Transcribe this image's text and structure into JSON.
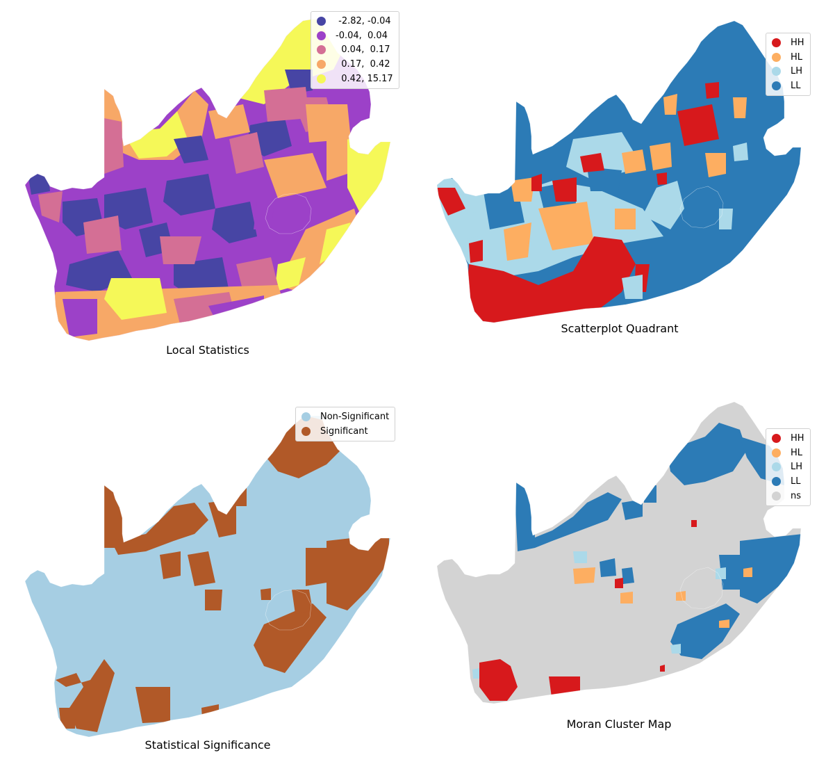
{
  "panels": [
    {
      "id": "local-statistics",
      "title": "Local Statistics",
      "legend": [
        {
          "label": " -2.82, -0.04",
          "color": "#4745a4"
        },
        {
          "label": "-0.04,  0.04",
          "color": "#9c41c8"
        },
        {
          "label": "  0.04,  0.17",
          "color": "#d46f95"
        },
        {
          "label": "  0.17,  0.42",
          "color": "#f7a867"
        },
        {
          "label": "  0.42, 15.17",
          "color": "#f5f858"
        }
      ]
    },
    {
      "id": "scatterplot-quadrant",
      "title": "Scatterplot Quadrant",
      "legend": [
        {
          "label": "HH",
          "color": "#d7191c"
        },
        {
          "label": "HL",
          "color": "#fdae61"
        },
        {
          "label": "LH",
          "color": "#abd9e9"
        },
        {
          "label": "LL",
          "color": "#2c7bb6"
        }
      ]
    },
    {
      "id": "statistical-significance",
      "title": "Statistical Significance",
      "legend": [
        {
          "label": "Non-Significant",
          "color": "#a6cee3"
        },
        {
          "label": "Significant",
          "color": "#b15928"
        }
      ]
    },
    {
      "id": "moran-cluster-map",
      "title": "Moran Cluster Map",
      "legend": [
        {
          "label": "HH",
          "color": "#d7191c"
        },
        {
          "label": "HL",
          "color": "#fdae61"
        },
        {
          "label": "LH",
          "color": "#abd9e9"
        },
        {
          "label": "LL",
          "color": "#2c7bb6"
        },
        {
          "label": "ns",
          "color": "#d3d3d3"
        }
      ]
    }
  ]
}
